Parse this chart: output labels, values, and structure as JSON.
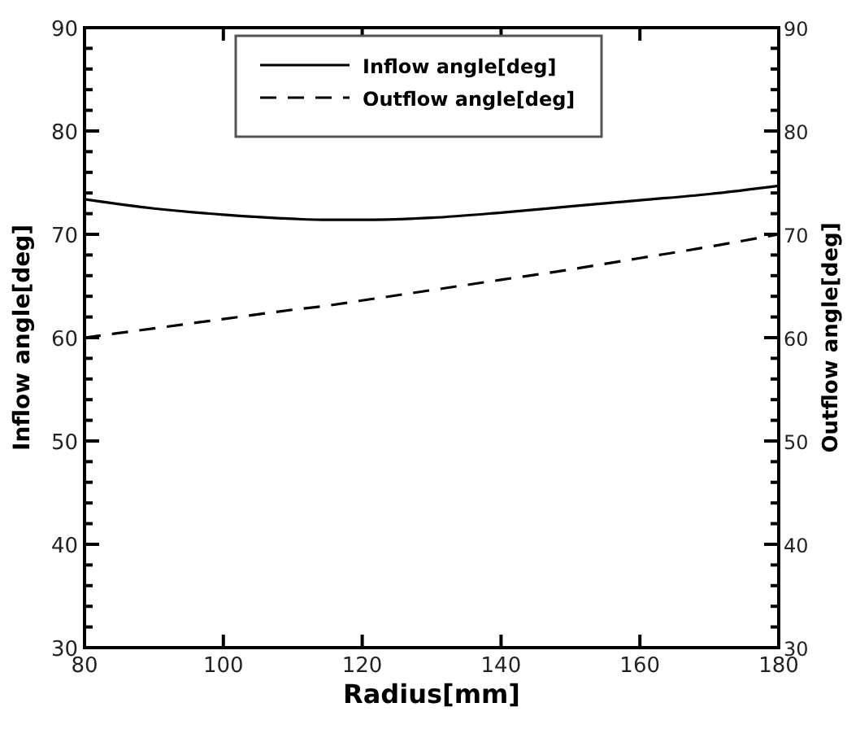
{
  "chart_data": {
    "type": "line",
    "xlabel": "Radius[mm]",
    "ylabel": "Inflow angle[deg]",
    "y2label": "Outflow angle[deg]",
    "xlim": [
      80,
      180
    ],
    "xticks": [
      80,
      100,
      120,
      140,
      160,
      180
    ],
    "ylim": [
      30,
      90
    ],
    "yticks": [
      30,
      {
        "value": 32,
        "label": null
      },
      {
        "value": 34,
        "label": null
      },
      {
        "value": 36,
        "label": null
      },
      {
        "value": 38,
        "label": null
      },
      40,
      {
        "value": 42,
        "label": null
      },
      {
        "value": 44,
        "label": null
      },
      {
        "value": 46,
        "label": null
      },
      {
        "value": 48,
        "label": null
      },
      50,
      {
        "value": 52,
        "label": null
      },
      {
        "value": 54,
        "label": null
      },
      {
        "value": 56,
        "label": null
      },
      {
        "value": 58,
        "label": null
      },
      60,
      {
        "value": 62,
        "label": null
      },
      {
        "value": 64,
        "label": null
      },
      {
        "value": 66,
        "label": null
      },
      {
        "value": 68,
        "label": null
      },
      70,
      {
        "value": 72,
        "label": null
      },
      {
        "value": 74,
        "label": null
      },
      {
        "value": 76,
        "label": null
      },
      {
        "value": 78,
        "label": null
      },
      80,
      {
        "value": 82,
        "label": null
      },
      {
        "value": 84,
        "label": null
      },
      {
        "value": 86,
        "label": null
      },
      {
        "value": 88,
        "label": null
      },
      90
    ],
    "y2lim": [
      30,
      90
    ],
    "y2ticks": [
      30,
      {
        "value": 32,
        "label": null
      },
      {
        "value": 34,
        "label": null
      },
      {
        "value": 36,
        "label": null
      },
      {
        "value": 38,
        "label": null
      },
      40,
      {
        "value": 42,
        "label": null
      },
      {
        "value": 44,
        "label": null
      },
      {
        "value": 46,
        "label": null
      },
      {
        "value": 48,
        "label": null
      },
      50,
      {
        "value": 52,
        "label": null
      },
      {
        "value": 54,
        "label": null
      },
      {
        "value": 56,
        "label": null
      },
      {
        "value": 58,
        "label": null
      },
      60,
      {
        "value": 62,
        "label": null
      },
      {
        "value": 64,
        "label": null
      },
      {
        "value": 66,
        "label": null
      },
      {
        "value": 68,
        "label": null
      },
      70,
      {
        "value": 72,
        "label": null
      },
      {
        "value": 74,
        "label": null
      },
      {
        "value": 76,
        "label": null
      },
      {
        "value": 78,
        "label": null
      },
      80,
      {
        "value": 82,
        "label": null
      },
      {
        "value": 84,
        "label": null
      },
      {
        "value": 86,
        "label": null
      },
      {
        "value": 88,
        "label": null
      },
      90
    ],
    "x": [
      80,
      90,
      100,
      110,
      115,
      120,
      130,
      140,
      150,
      160,
      170,
      180
    ],
    "series": [
      {
        "name": "Inflow angle[deg]",
        "color": "#000000",
        "line_style": "solid",
        "values": [
          73.4,
          72.5,
          71.9,
          71.5,
          71.4,
          71.4,
          71.6,
          72.1,
          72.7,
          73.3,
          73.9,
          74.7
        ]
      },
      {
        "name": "Outflow angle[deg]",
        "color": "#000000",
        "line_style": "dashed",
        "axis": "y2",
        "values": [
          60.0,
          60.9,
          61.8,
          62.7,
          63.1,
          63.6,
          64.6,
          65.6,
          66.6,
          67.7,
          68.8,
          70.0
        ]
      }
    ],
    "legend": "top",
    "marker": "none",
    "grid": false
  }
}
